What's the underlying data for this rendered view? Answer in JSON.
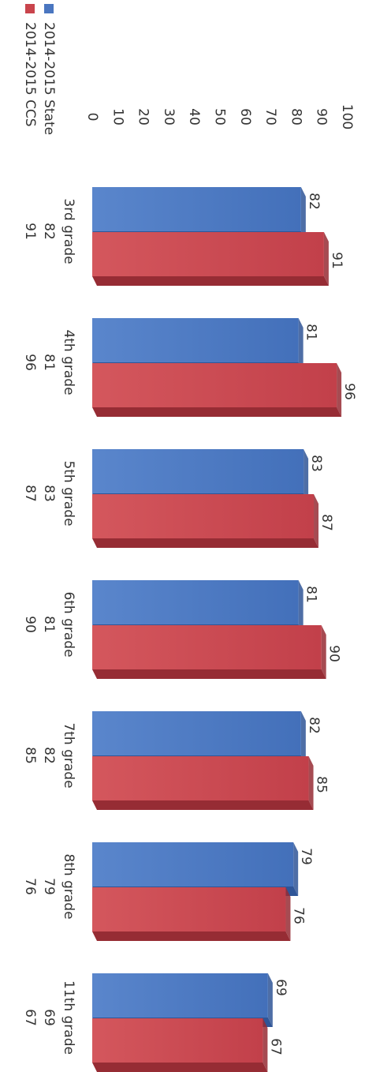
{
  "chart_data": {
    "type": "bar",
    "orientation": "rotated-90-clockwise",
    "categories": [
      "3rd grade",
      "4th grade",
      "5th grade",
      "6th grade",
      "7th grade",
      "8th grade",
      "11th grade"
    ],
    "series": [
      {
        "name": "2014-2015 State",
        "values": [
          82,
          81,
          83,
          81,
          82,
          79,
          69
        ],
        "color": "#4a76c0"
      },
      {
        "name": "2014-2015 CCS",
        "values": [
          91,
          96,
          87,
          90,
          85,
          76,
          67
        ],
        "color": "#c9444c"
      }
    ],
    "ylim": [
      0,
      100
    ],
    "ticks": [
      "0",
      "10",
      "20",
      "30",
      "40",
      "50",
      "60",
      "70",
      "80",
      "90",
      "100"
    ],
    "legend": "left, with data table below categories",
    "bar_style": "3d",
    "grid": false
  }
}
